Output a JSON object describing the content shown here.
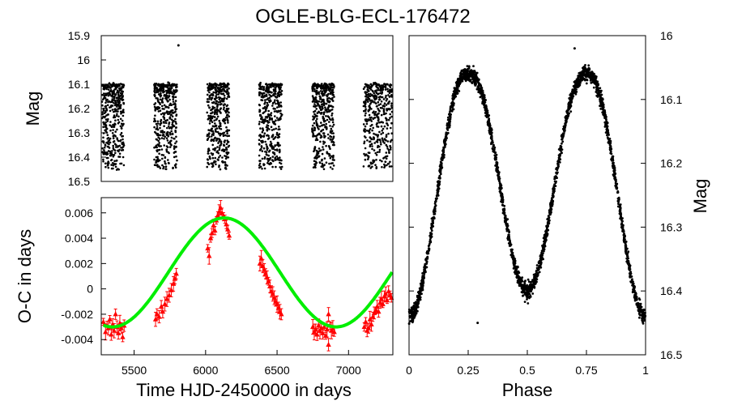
{
  "title": "OGLE-BLG-ECL-176472",
  "chart_data": [
    {
      "id": "lightcurve",
      "type": "scatter",
      "ylabel": "Mag",
      "xlim": [
        5270,
        7310
      ],
      "ylim": [
        15.9,
        16.5
      ],
      "y_inverted": true,
      "yticks": [
        "15.9",
        "16",
        "16.1",
        "16.2",
        "16.3",
        "16.4",
        "16.5"
      ],
      "seasons": [
        {
          "start": 5275,
          "end": 5430
        },
        {
          "start": 5640,
          "end": 5800
        },
        {
          "start": 6010,
          "end": 6165
        },
        {
          "start": 6375,
          "end": 6535
        },
        {
          "start": 6745,
          "end": 6900
        },
        {
          "start": 7105,
          "end": 7305
        }
      ],
      "mag_range": [
        16.1,
        16.45
      ],
      "outlier": {
        "x": 5810,
        "y": 15.94
      },
      "color": "#000000"
    },
    {
      "id": "oc",
      "type": "scatter",
      "xlabel": "Time HJD-2450000 in days",
      "ylabel": "O-C in days",
      "xlim": [
        5270,
        7310
      ],
      "ylim": [
        -0.0052,
        0.0072
      ],
      "xticks": [
        "5500",
        "6000",
        "6500",
        "7000"
      ],
      "yticks": [
        "-0.004",
        "-0.002",
        "0",
        "0.002",
        "0.004",
        "0.006"
      ],
      "fit": {
        "amplitude": 0.0043,
        "mean": 0.0013,
        "center": 6130,
        "period": 1565,
        "color": "#00ee00"
      },
      "points_color": "#ff0000",
      "points": [
        [
          5285,
          -0.0026
        ],
        [
          5300,
          -0.0034
        ],
        [
          5310,
          -0.0029
        ],
        [
          5320,
          -0.0031
        ],
        [
          5330,
          -0.0024
        ],
        [
          5340,
          -0.0036
        ],
        [
          5350,
          -0.0028
        ],
        [
          5360,
          -0.0033
        ],
        [
          5370,
          -0.002
        ],
        [
          5380,
          -0.003
        ],
        [
          5390,
          -0.0035
        ],
        [
          5400,
          -0.0027
        ],
        [
          5410,
          -0.0031
        ],
        [
          5420,
          -0.0038
        ],
        [
          5430,
          -0.0029
        ],
        [
          5650,
          -0.0024
        ],
        [
          5660,
          -0.002
        ],
        [
          5675,
          -0.0022
        ],
        [
          5690,
          -0.0014
        ],
        [
          5700,
          -0.0018
        ],
        [
          5715,
          -0.0012
        ],
        [
          5730,
          -0.0008
        ],
        [
          5745,
          -0.0005
        ],
        [
          5760,
          -0.0001
        ],
        [
          5775,
          0.0004
        ],
        [
          5785,
          0.0008
        ],
        [
          5795,
          0.0012
        ],
        [
          6015,
          0.0032
        ],
        [
          6025,
          0.0026
        ],
        [
          6035,
          0.004
        ],
        [
          6045,
          0.0044
        ],
        [
          6055,
          0.005
        ],
        [
          6065,
          0.0046
        ],
        [
          6075,
          0.0054
        ],
        [
          6085,
          0.0058
        ],
        [
          6095,
          0.0061
        ],
        [
          6105,
          0.0064
        ],
        [
          6115,
          0.006
        ],
        [
          6125,
          0.0057
        ],
        [
          6135,
          0.0055
        ],
        [
          6145,
          0.0051
        ],
        [
          6155,
          0.0047
        ],
        [
          6165,
          0.0042
        ],
        [
          6380,
          0.002
        ],
        [
          6390,
          0.0024
        ],
        [
          6400,
          0.0018
        ],
        [
          6410,
          0.0015
        ],
        [
          6420,
          0.0012
        ],
        [
          6430,
          0.0009
        ],
        [
          6440,
          0.0006
        ],
        [
          6450,
          0.0002
        ],
        [
          6460,
          -0.0002
        ],
        [
          6470,
          -0.0004
        ],
        [
          6480,
          -0.0007
        ],
        [
          6490,
          -0.001
        ],
        [
          6500,
          -0.0012
        ],
        [
          6510,
          -0.0015
        ],
        [
          6520,
          -0.0018
        ],
        [
          6530,
          -0.002
        ],
        [
          6750,
          -0.003
        ],
        [
          6760,
          -0.0034
        ],
        [
          6770,
          -0.0032
        ],
        [
          6780,
          -0.0036
        ],
        [
          6790,
          -0.0029
        ],
        [
          6800,
          -0.0033
        ],
        [
          6810,
          -0.0031
        ],
        [
          6820,
          -0.0035
        ],
        [
          6830,
          -0.003
        ],
        [
          6840,
          -0.0037
        ],
        [
          6850,
          -0.0032
        ],
        [
          6860,
          -0.0044
        ],
        [
          6870,
          -0.0029
        ],
        [
          6880,
          -0.0033
        ],
        [
          6890,
          -0.0031
        ],
        [
          6900,
          -0.0034
        ],
        [
          6860,
          -0.002
        ],
        [
          7110,
          -0.003
        ],
        [
          7120,
          -0.0026
        ],
        [
          7130,
          -0.0033
        ],
        [
          7140,
          -0.0031
        ],
        [
          7150,
          -0.0024
        ],
        [
          7160,
          -0.0028
        ],
        [
          7170,
          -0.0022
        ],
        [
          7180,
          -0.0019
        ],
        [
          7190,
          -0.0017
        ],
        [
          7200,
          -0.0014
        ],
        [
          7210,
          -0.0018
        ],
        [
          7220,
          -0.0011
        ],
        [
          7230,
          -0.0008
        ],
        [
          7240,
          -0.0012
        ],
        [
          7250,
          -0.0006
        ],
        [
          7260,
          -0.0004
        ],
        [
          7270,
          -0.0009
        ],
        [
          7280,
          -0.0002
        ],
        [
          7290,
          -0.0005
        ],
        [
          7300,
          -0.0007
        ]
      ]
    },
    {
      "id": "phased",
      "type": "scatter",
      "xlabel": "Phase",
      "ylabel": "Mag",
      "xlim": [
        0,
        1
      ],
      "ylim": [
        16.0,
        16.5
      ],
      "y_inverted": true,
      "xticks": [
        "0",
        "0.25",
        "0.5",
        "0.75",
        "1"
      ],
      "yticks": [
        "16",
        "16.1",
        "16.2",
        "16.3",
        "16.4",
        "16.5"
      ],
      "model": {
        "max_mag": 16.06,
        "primary_min": 16.4,
        "secondary_min": 16.44
      },
      "outliers": [
        [
          0.29,
          16.45
        ],
        [
          0.7,
          16.02
        ]
      ],
      "color": "#000000"
    }
  ]
}
